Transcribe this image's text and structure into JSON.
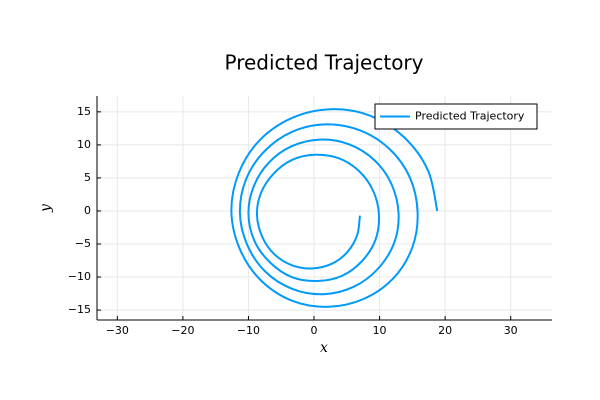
{
  "chart_data": {
    "type": "line",
    "title": "Predicted Trajectory",
    "xlabel": "x",
    "ylabel": "y",
    "xlim": [
      -33.1,
      36.3
    ],
    "ylim": [
      -16.5,
      17.4
    ],
    "xticks": [
      {
        "value": -30,
        "label": "−30"
      },
      {
        "value": -20,
        "label": "−20"
      },
      {
        "value": -10,
        "label": "−10"
      },
      0,
      10,
      20,
      30
    ],
    "yticks": [
      {
        "value": -15,
        "label": "−15"
      },
      {
        "value": -10,
        "label": "−10"
      },
      {
        "value": -5,
        "label": "−5"
      },
      0,
      5,
      10,
      15
    ],
    "grid": true,
    "legend": "top-right",
    "series": [
      {
        "name": "Predicted Trajectory",
        "color": "#009af9",
        "x": [
          18.8,
          17.4,
          13.8,
          8.6,
          2.6,
          -3.3,
          -8.3,
          -11.5,
          -12.6,
          -11.3,
          -8.1,
          -3.3,
          2.2,
          7.6,
          12.1,
          15.0,
          15.8,
          14.6,
          11.5,
          7.0,
          1.8,
          -3.3,
          -7.6,
          -10.4,
          -11.3,
          -10.2,
          -7.4,
          -3.3,
          1.4,
          6.0,
          9.7,
          12.2,
          12.9,
          11.8,
          9.2,
          5.3,
          0.9,
          -3.4,
          -6.9,
          -9.2,
          -10.0,
          -9.1,
          -6.7,
          -3.4,
          0.5,
          4.3,
          7.4,
          9.4,
          9.9,
          9.0,
          6.8,
          3.7,
          0.1,
          -3.4,
          -6.2,
          -8.1,
          -8.7,
          -7.9,
          -6.1,
          -3.4,
          -0.3,
          2.7,
          5.1,
          6.6,
          7.0
        ],
        "values": [
          0,
          6.1,
          11.1,
          14.4,
          15.4,
          14.1,
          10.7,
          5.7,
          -0.1,
          -5.8,
          -10.5,
          -13.6,
          -14.5,
          -13.3,
          -10.2,
          -5.5,
          -0.2,
          5.1,
          9.4,
          12.2,
          13.1,
          12.0,
          9.0,
          4.7,
          -0.3,
          -5.1,
          -9.2,
          -11.8,
          -12.6,
          -11.5,
          -8.8,
          -4.9,
          -0.4,
          4.1,
          7.7,
          10.1,
          10.8,
          9.8,
          7.3,
          3.7,
          -0.4,
          -4.5,
          -7.8,
          -10.0,
          -10.6,
          -9.8,
          -7.5,
          -4.3,
          -0.5,
          3.1,
          6.1,
          8.0,
          8.5,
          7.7,
          5.6,
          2.7,
          -0.6,
          -3.9,
          -6.5,
          -8.2,
          -8.7,
          -8.0,
          -6.2,
          -3.6,
          -0.7
        ]
      }
    ]
  }
}
